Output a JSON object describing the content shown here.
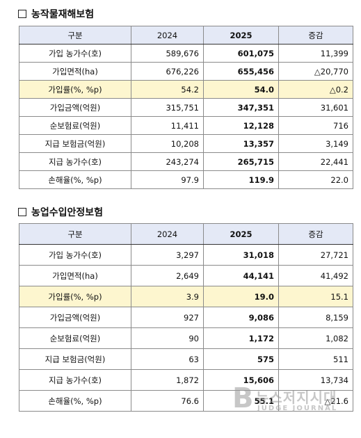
{
  "sections": [
    {
      "title": "농작물재해보험",
      "headers": [
        "구분",
        "2024",
        "2025",
        "증감"
      ],
      "rows": [
        {
          "label": "가입 농가수(호)",
          "y2024": "589,676",
          "y2025": "601,075",
          "change": "11,399"
        },
        {
          "label": "가입면적(ha)",
          "y2024": "676,226",
          "y2025": "655,456",
          "change": "△20,770"
        },
        {
          "label": "가입률(%, %p)",
          "y2024": "54.2",
          "y2025": "54.0",
          "change": "△0.2"
        },
        {
          "label": "가입금액(억원)",
          "y2024": "315,751",
          "y2025": "347,351",
          "change": "31,601"
        },
        {
          "label": "순보험료(억원)",
          "y2024": "11,411",
          "y2025": "12,128",
          "change": "716"
        },
        {
          "label": "지급 보험금(억원)",
          "y2024": "10,208",
          "y2025": "13,357",
          "change": "3,149"
        },
        {
          "label": "지급 농가수(호)",
          "y2024": "243,274",
          "y2025": "265,715",
          "change": "22,441"
        },
        {
          "label": "손해율(%, %p)",
          "y2024": "97.9",
          "y2025": "119.9",
          "change": "22.0"
        }
      ]
    },
    {
      "title": "농업수입안정보험",
      "headers": [
        "구분",
        "2024",
        "2025",
        "증감"
      ],
      "rows": [
        {
          "label": "가입 농가수(호)",
          "y2024": "3,297",
          "y2025": "31,018",
          "change": "27,721"
        },
        {
          "label": "가입면적(ha)",
          "y2024": "2,649",
          "y2025": "44,141",
          "change": "41,492"
        },
        {
          "label": "가입률(%, %p)",
          "y2024": "3.9",
          "y2025": "19.0",
          "change": "15.1"
        },
        {
          "label": "가입금액(억원)",
          "y2024": "927",
          "y2025": "9,086",
          "change": "8,159"
        },
        {
          "label": "순보험료(억원)",
          "y2024": "90",
          "y2025": "1,172",
          "change": "1,082"
        },
        {
          "label": "지급 보험금(억원)",
          "y2024": "63",
          "y2025": "575",
          "change": "511"
        },
        {
          "label": "지급 농가수(호)",
          "y2024": "1,872",
          "y2025": "15,606",
          "change": "13,734"
        },
        {
          "label": "손해율(%, %p)",
          "y2024": "76.6",
          "y2025": "55.1",
          "change": "△21.6"
        }
      ]
    }
  ],
  "highlight_color": "#fdf6cf",
  "header_color": "#e4e9f6",
  "watermark": {
    "letter": "B",
    "text": "뉴스저지시대",
    "subtext": "JUDGE JOURNAL"
  }
}
